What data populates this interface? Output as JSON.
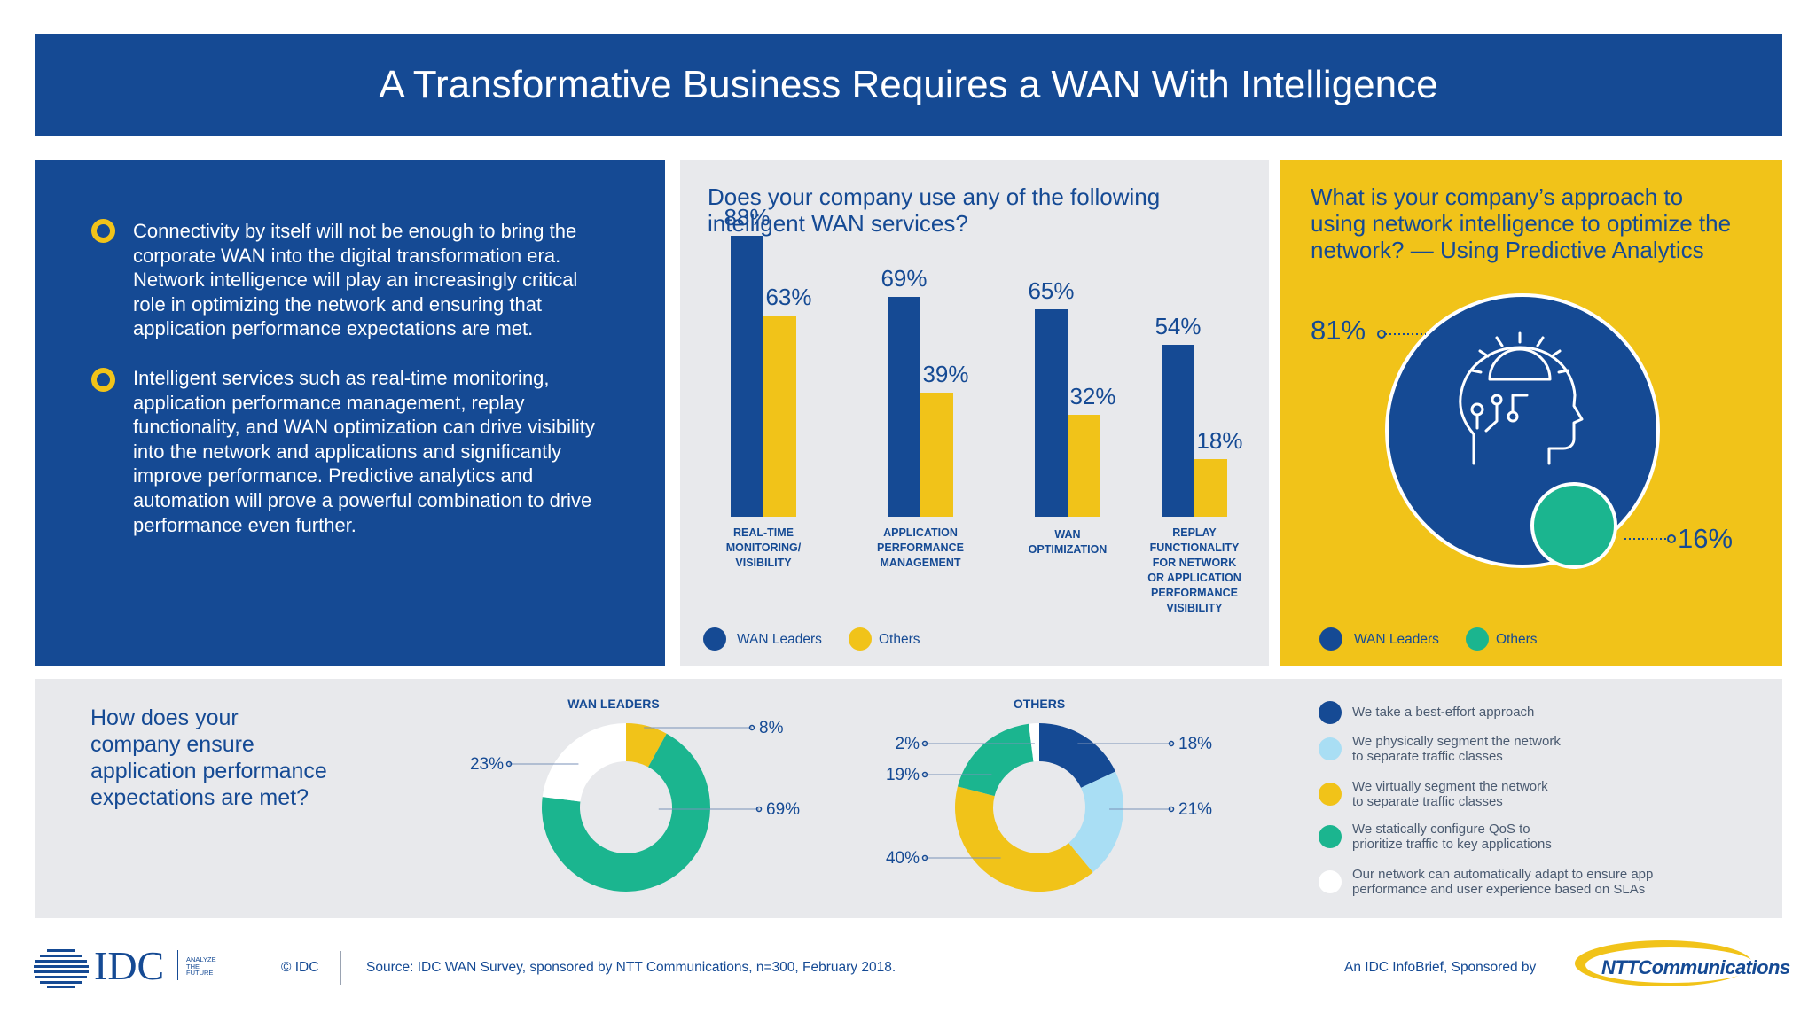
{
  "header": {
    "title": "A Transformative Business Requires a WAN With Intelligence"
  },
  "intro": {
    "bullets": [
      "Connectivity by itself will not be enough to bring the corporate WAN into the digital transformation era. Network intelligence will play an increasingly critical role in optimizing the network and ensuring that application performance expectations are met.",
      "Intelligent services such as real-time monitoring, application performance management, replay functionality, and WAN optimization can drive visibility into the network and applications and significantly improve performance. Predictive analytics and automation will prove a powerful combination to drive performance even further."
    ]
  },
  "colors": {
    "navy": "#154a94",
    "yellow": "#f1c319",
    "green": "#1bb58f",
    "light_blue": "#a9def4",
    "white": "#ffffff"
  },
  "icons": {
    "bullet": "ring-bullet-icon",
    "brain": "head-gear-circuit-icon"
  },
  "chart_data": [
    {
      "type": "bar",
      "title": "Does your company use any of the following intelligent WAN services?",
      "categories": [
        "REAL-TIME MONITORING/ VISIBILITY",
        "APPLICATION PERFORMANCE MANAGEMENT",
        "WAN OPTIMIZATION",
        "REPLAY FUNCTIONALITY FOR NETWORK OR APPLICATION PERFORMANCE VISIBILITY"
      ],
      "category_lines": [
        [
          "REAL-TIME",
          "MONITORING/",
          "VISIBILITY"
        ],
        [
          "APPLICATION",
          "PERFORMANCE",
          "MANAGEMENT"
        ],
        [
          "WAN",
          "OPTIMIZATION"
        ],
        [
          "REPLAY",
          "FUNCTIONALITY",
          "FOR NETWORK",
          "OR APPLICATION",
          "PERFORMANCE",
          "VISIBILITY"
        ]
      ],
      "series": [
        {
          "name": "WAN Leaders",
          "values": [
            88,
            69,
            65,
            54
          ],
          "labels": [
            "88%",
            "69%",
            "65%",
            "54%"
          ],
          "color": "#154a94"
        },
        {
          "name": "Others",
          "values": [
            63,
            39,
            32,
            18
          ],
          "labels": [
            "63%",
            "39%",
            "32%",
            "18%"
          ],
          "color": "#f1c319"
        }
      ],
      "ylim": [
        0,
        100
      ],
      "legend": "bottom-left"
    },
    {
      "type": "pie",
      "title": "What is your company’s approach to using network intelligence to optimize the network? — Using Predictive Analytics",
      "series": [
        {
          "name": "WAN Leaders",
          "value": 81,
          "label": "81%",
          "color": "#154a94"
        },
        {
          "name": "Others",
          "value": 16,
          "label": "16%",
          "color": "#1bb58f"
        }
      ],
      "legend": "bottom-left"
    },
    {
      "type": "pie",
      "title": "How does your company ensure application performance expectations are met?",
      "subtitle": "WAN LEADERS",
      "slices": [
        {
          "category": "We take a best-effort approach",
          "value": 0,
          "color": "#154a94"
        },
        {
          "category": "We physically segment the network to separate traffic classes",
          "value": 0,
          "color": "#a9def4"
        },
        {
          "category": "We virtually segment the network to separate traffic classes",
          "value": 8,
          "label": "8%",
          "color": "#f1c319"
        },
        {
          "category": "We statically configure QoS to prioritize traffic to key applications",
          "value": 69,
          "label": "69%",
          "color": "#1bb58f"
        },
        {
          "category": "Our network can automatically adapt to ensure app performance and user experience based on SLAs",
          "value": 23,
          "label": "23%",
          "color": "#ffffff"
        }
      ]
    },
    {
      "type": "pie",
      "subtitle": "OTHERS",
      "slices": [
        {
          "category": "We take a best-effort approach",
          "value": 18,
          "label": "18%",
          "color": "#154a94"
        },
        {
          "category": "We physically segment the network to separate traffic classes",
          "value": 21,
          "label": "21%",
          "color": "#a9def4"
        },
        {
          "category": "We virtually segment the network to separate traffic classes",
          "value": 40,
          "label": "40%",
          "color": "#f1c319"
        },
        {
          "category": "We statically configure QoS to prioritize traffic to key applications",
          "value": 19,
          "label": "19%",
          "color": "#1bb58f"
        },
        {
          "category": "Our network can automatically adapt to ensure app performance and user experience based on SLAs",
          "value": 2,
          "label": "2%",
          "color": "#ffffff"
        }
      ]
    }
  ],
  "legends": {
    "wan_leaders": "WAN Leaders",
    "others": "Others",
    "approaches": [
      {
        "lines": [
          "We take a best-effort approach"
        ],
        "color": "#154a94"
      },
      {
        "lines": [
          "We physically segment the network",
          "to separate traffic classes"
        ],
        "color": "#a9def4"
      },
      {
        "lines": [
          "We virtually segment the network",
          "to separate traffic classes"
        ],
        "color": "#f1c319"
      },
      {
        "lines": [
          "We statically configure QoS to",
          "prioritize traffic to key applications"
        ],
        "color": "#1bb58f"
      },
      {
        "lines": [
          "Our network can automatically adapt to ensure app",
          "performance and user experience based on SLAs"
        ],
        "color": "#ffffff"
      }
    ]
  },
  "bottom_question_lines": [
    "How does your",
    "company ensure",
    "application performance",
    "expectations are met?"
  ],
  "mid_question_lines": [
    "Does your company use any of the following",
    "intelligent WAN services?"
  ],
  "right_question_lines": [
    "What is your company’s approach to",
    "using network intelligence to optimize the",
    "network? — Using Predictive Analytics"
  ],
  "footer": {
    "idc_logo": "IDC",
    "idc_tagline": [
      "ANALYZE",
      "THE",
      "FUTURE"
    ],
    "copyright": "© IDC",
    "source": "Source: IDC WAN Survey, sponsored by NTT Communications, n=300, February 2018.",
    "sponsor_note": "An IDC InfoBrief, Sponsored by",
    "ntt_logo": "NTTCommunications"
  }
}
